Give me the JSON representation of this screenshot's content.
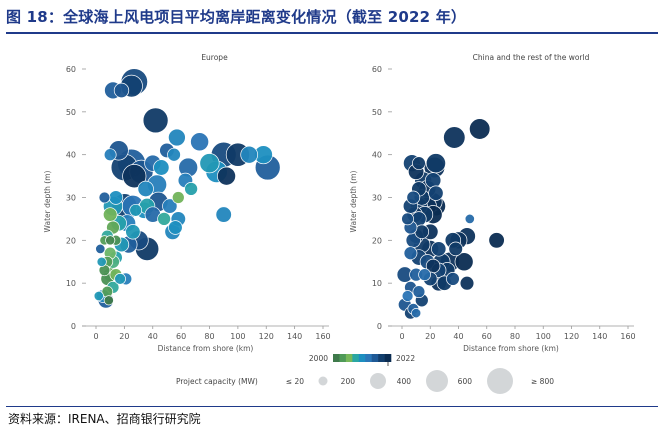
{
  "figure": {
    "title": "图 18：全球海上风电项目平均离岸距离变化情况（截至 2022 年）",
    "source": "资料来源：IRENA、招商银行研究院"
  },
  "legend": {
    "year_start": "2000",
    "year_end": "2022",
    "capacity_label": "Project capacity (MW)",
    "size_labels": [
      "≤ 20",
      "200",
      "400",
      "600",
      "≥ 800"
    ],
    "size_values": [
      20,
      200,
      400,
      600,
      800
    ]
  },
  "colors": {
    "year_scale": [
      "#3f7a4b",
      "#4f9a58",
      "#78b85a",
      "#2aa7a3",
      "#1d8fc0",
      "#2b77b8",
      "#1f5a96",
      "#123f6e",
      "#0b2c52"
    ],
    "axis": "#999999",
    "bubble_stroke": "#ffffff"
  },
  "chart_data": [
    {
      "type": "scatter",
      "title": "Europe",
      "xlabel": "Distance from shore (km)",
      "ylabel": "Water depth (m)",
      "xlim": [
        0,
        160
      ],
      "ylim": [
        0,
        60
      ],
      "xticks": [
        "0",
        "20",
        "40",
        "60",
        "80",
        "100",
        "120",
        "140",
        "160"
      ],
      "yticks": [
        "0",
        "10",
        "20",
        "30",
        "40",
        "50",
        "60"
      ],
      "points": [
        {
          "x": 27,
          "y": 57,
          "cap": 700,
          "year": 2018
        },
        {
          "x": 25,
          "y": 56,
          "cap": 420,
          "year": 2019
        },
        {
          "x": 12,
          "y": 55,
          "cap": 200,
          "year": 2016
        },
        {
          "x": 18,
          "y": 55,
          "cap": 120,
          "year": 2017
        },
        {
          "x": 42,
          "y": 48,
          "cap": 600,
          "year": 2020
        },
        {
          "x": 57,
          "y": 44,
          "cap": 200,
          "year": 2012
        },
        {
          "x": 73,
          "y": 43,
          "cap": 250,
          "year": 2014
        },
        {
          "x": 16,
          "y": 41,
          "cap": 300,
          "year": 2017
        },
        {
          "x": 10,
          "y": 40,
          "cap": 60,
          "year": 2013
        },
        {
          "x": 50,
          "y": 41,
          "cap": 120,
          "year": 2016
        },
        {
          "x": 55,
          "y": 40,
          "cap": 80,
          "year": 2012
        },
        {
          "x": 90,
          "y": 40,
          "cap": 600,
          "year": 2018
        },
        {
          "x": 100,
          "y": 40,
          "cap": 500,
          "year": 2020
        },
        {
          "x": 108,
          "y": 40,
          "cap": 200,
          "year": 2012
        },
        {
          "x": 118,
          "y": 40,
          "cap": 250,
          "year": 2011
        },
        {
          "x": 25,
          "y": 38,
          "cap": 800,
          "year": 2016
        },
        {
          "x": 20,
          "y": 37,
          "cap": 700,
          "year": 2019
        },
        {
          "x": 32,
          "y": 36,
          "cap": 500,
          "year": 2017
        },
        {
          "x": 40,
          "y": 38,
          "cap": 180,
          "year": 2015
        },
        {
          "x": 46,
          "y": 37,
          "cap": 150,
          "year": 2011
        },
        {
          "x": 27,
          "y": 35,
          "cap": 500,
          "year": 2021
        },
        {
          "x": 65,
          "y": 37,
          "cap": 280,
          "year": 2015
        },
        {
          "x": 80,
          "y": 38,
          "cap": 300,
          "year": 2010
        },
        {
          "x": 121,
          "y": 37,
          "cap": 600,
          "year": 2016
        },
        {
          "x": 85,
          "y": 36,
          "cap": 400,
          "year": 2011
        },
        {
          "x": 92,
          "y": 35,
          "cap": 250,
          "year": 2021
        },
        {
          "x": 63,
          "y": 34,
          "cap": 120,
          "year": 2013
        },
        {
          "x": 43,
          "y": 33,
          "cap": 300,
          "year": 2013
        },
        {
          "x": 35,
          "y": 32,
          "cap": 150,
          "year": 2012
        },
        {
          "x": 67,
          "y": 32,
          "cap": 80,
          "year": 2009
        },
        {
          "x": 6,
          "y": 30,
          "cap": 40,
          "year": 2016
        },
        {
          "x": 14,
          "y": 30,
          "cap": 100,
          "year": 2011
        },
        {
          "x": 44,
          "y": 29,
          "cap": 300,
          "year": 2017
        },
        {
          "x": 52,
          "y": 28,
          "cap": 120,
          "year": 2013
        },
        {
          "x": 58,
          "y": 30,
          "cap": 60,
          "year": 2005
        },
        {
          "x": 12,
          "y": 28,
          "cap": 300,
          "year": 2010
        },
        {
          "x": 20,
          "y": 28,
          "cap": 600,
          "year": 2019
        },
        {
          "x": 26,
          "y": 28,
          "cap": 400,
          "year": 2014
        },
        {
          "x": 28,
          "y": 27,
          "cap": 60,
          "year": 2010
        },
        {
          "x": 34,
          "y": 27,
          "cap": 180,
          "year": 2011
        },
        {
          "x": 36,
          "y": 28,
          "cap": 150,
          "year": 2009
        },
        {
          "x": 10,
          "y": 26,
          "cap": 100,
          "year": 2005
        },
        {
          "x": 40,
          "y": 26,
          "cap": 150,
          "year": 2015
        },
        {
          "x": 48,
          "y": 25,
          "cap": 80,
          "year": 2008
        },
        {
          "x": 58,
          "y": 25,
          "cap": 120,
          "year": 2012
        },
        {
          "x": 90,
          "y": 26,
          "cap": 150,
          "year": 2012
        },
        {
          "x": 16,
          "y": 24,
          "cap": 150,
          "year": 2009
        },
        {
          "x": 22,
          "y": 24,
          "cap": 200,
          "year": 2013
        },
        {
          "x": 56,
          "y": 23,
          "cap": 100,
          "year": 2011
        },
        {
          "x": 12,
          "y": 23,
          "cap": 80,
          "year": 2004
        },
        {
          "x": 26,
          "y": 22,
          "cap": 120,
          "year": 2010
        },
        {
          "x": 54,
          "y": 22,
          "cap": 150,
          "year": 2012
        },
        {
          "x": 8,
          "y": 21,
          "cap": 60,
          "year": 2008
        },
        {
          "x": 30,
          "y": 20,
          "cap": 300,
          "year": 2018
        },
        {
          "x": 6,
          "y": 20,
          "cap": 20,
          "year": 2003
        },
        {
          "x": 10,
          "y": 20,
          "cap": 20,
          "year": 2001
        },
        {
          "x": 14,
          "y": 20,
          "cap": 30,
          "year": 2002
        },
        {
          "x": 18,
          "y": 19,
          "cap": 120,
          "year": 2010
        },
        {
          "x": 23,
          "y": 19,
          "cap": 200,
          "year": 2016
        },
        {
          "x": 36,
          "y": 18,
          "cap": 500,
          "year": 2020
        },
        {
          "x": 3,
          "y": 18,
          "cap": 20,
          "year": 2016
        },
        {
          "x": 10,
          "y": 17,
          "cap": 60,
          "year": 2006
        },
        {
          "x": 14,
          "y": 16,
          "cap": 80,
          "year": 2009
        },
        {
          "x": 4,
          "y": 15,
          "cap": 20,
          "year": 2010
        },
        {
          "x": 8,
          "y": 15,
          "cap": 40,
          "year": 2003
        },
        {
          "x": 12,
          "y": 15,
          "cap": 80,
          "year": 2007
        },
        {
          "x": 6,
          "y": 13,
          "cap": 40,
          "year": 2002
        },
        {
          "x": 10,
          "y": 12,
          "cap": 100,
          "year": 2004
        },
        {
          "x": 14,
          "y": 12,
          "cap": 60,
          "year": 2005
        },
        {
          "x": 8,
          "y": 11,
          "cap": 80,
          "year": 2002
        },
        {
          "x": 17,
          "y": 11,
          "cap": 40,
          "year": 2010
        },
        {
          "x": 21,
          "y": 11,
          "cap": 60,
          "year": 2013
        },
        {
          "x": 12,
          "y": 9,
          "cap": 60,
          "year": 2008
        },
        {
          "x": 8,
          "y": 8,
          "cap": 40,
          "year": 2003
        },
        {
          "x": 5,
          "y": 7,
          "cap": 80,
          "year": 2012
        },
        {
          "x": 7,
          "y": 6,
          "cap": 150,
          "year": 2016
        },
        {
          "x": 9,
          "y": 6,
          "cap": 20,
          "year": 2000
        },
        {
          "x": 2,
          "y": 7,
          "cap": 20,
          "year": 2010
        }
      ]
    },
    {
      "type": "scatter",
      "title": "China and the rest of the world",
      "xlabel": "Distance from shore (km)",
      "ylabel": "Water depth (m)",
      "xlim": [
        0,
        160
      ],
      "ylim": [
        0,
        60
      ],
      "xticks": [
        "0",
        "20",
        "40",
        "60",
        "80",
        "100",
        "120",
        "140",
        "160"
      ],
      "yticks": [
        "0",
        "10",
        "20",
        "30",
        "40",
        "50",
        "60"
      ],
      "points": [
        {
          "x": 55,
          "y": 46,
          "cap": 350,
          "year": 2022
        },
        {
          "x": 37,
          "y": 44,
          "cap": 400,
          "year": 2021
        },
        {
          "x": 24,
          "y": 38,
          "cap": 300,
          "year": 2020
        },
        {
          "x": 7,
          "y": 38,
          "cap": 200,
          "year": 2019
        },
        {
          "x": 12,
          "y": 38,
          "cap": 80,
          "year": 2020
        },
        {
          "x": 23,
          "y": 37,
          "cap": 350,
          "year": 2021
        },
        {
          "x": 10,
          "y": 36,
          "cap": 150,
          "year": 2021
        },
        {
          "x": 15,
          "y": 34,
          "cap": 200,
          "year": 2020
        },
        {
          "x": 22,
          "y": 34,
          "cap": 150,
          "year": 2019
        },
        {
          "x": 12,
          "y": 32,
          "cap": 120,
          "year": 2020
        },
        {
          "x": 18,
          "y": 32,
          "cap": 200,
          "year": 2021
        },
        {
          "x": 24,
          "y": 31,
          "cap": 120,
          "year": 2019
        },
        {
          "x": 8,
          "y": 30,
          "cap": 80,
          "year": 2018
        },
        {
          "x": 14,
          "y": 30,
          "cap": 150,
          "year": 2020
        },
        {
          "x": 22,
          "y": 29,
          "cap": 250,
          "year": 2021
        },
        {
          "x": 6,
          "y": 28,
          "cap": 120,
          "year": 2019
        },
        {
          "x": 12,
          "y": 28,
          "cap": 200,
          "year": 2020
        },
        {
          "x": 18,
          "y": 28,
          "cap": 250,
          "year": 2021
        },
        {
          "x": 24,
          "y": 28,
          "cap": 300,
          "year": 2022
        },
        {
          "x": 9,
          "y": 26,
          "cap": 150,
          "year": 2021
        },
        {
          "x": 16,
          "y": 26,
          "cap": 180,
          "year": 2020
        },
        {
          "x": 22,
          "y": 26,
          "cap": 250,
          "year": 2022
        },
        {
          "x": 4,
          "y": 25,
          "cap": 60,
          "year": 2018
        },
        {
          "x": 12,
          "y": 25,
          "cap": 120,
          "year": 2019
        },
        {
          "x": 48,
          "y": 25,
          "cap": 20,
          "year": 2015
        },
        {
          "x": 6,
          "y": 23,
          "cap": 80,
          "year": 2017
        },
        {
          "x": 14,
          "y": 22,
          "cap": 100,
          "year": 2020
        },
        {
          "x": 20,
          "y": 22,
          "cap": 150,
          "year": 2021
        },
        {
          "x": 10,
          "y": 21,
          "cap": 120,
          "year": 2019
        },
        {
          "x": 46,
          "y": 21,
          "cap": 200,
          "year": 2021
        },
        {
          "x": 36,
          "y": 20,
          "cap": 150,
          "year": 2020
        },
        {
          "x": 40,
          "y": 20,
          "cap": 200,
          "year": 2021
        },
        {
          "x": 67,
          "y": 20,
          "cap": 150,
          "year": 2022
        },
        {
          "x": 8,
          "y": 20,
          "cap": 120,
          "year": 2018
        },
        {
          "x": 14,
          "y": 19,
          "cap": 180,
          "year": 2020
        },
        {
          "x": 20,
          "y": 18,
          "cap": 200,
          "year": 2021
        },
        {
          "x": 26,
          "y": 18,
          "cap": 120,
          "year": 2019
        },
        {
          "x": 38,
          "y": 18,
          "cap": 100,
          "year": 2020
        },
        {
          "x": 6,
          "y": 17,
          "cap": 80,
          "year": 2016
        },
        {
          "x": 12,
          "y": 16,
          "cap": 150,
          "year": 2019
        },
        {
          "x": 28,
          "y": 15,
          "cap": 200,
          "year": 2020
        },
        {
          "x": 34,
          "y": 15,
          "cap": 300,
          "year": 2021
        },
        {
          "x": 44,
          "y": 15,
          "cap": 250,
          "year": 2022
        },
        {
          "x": 18,
          "y": 15,
          "cap": 120,
          "year": 2018
        },
        {
          "x": 22,
          "y": 14,
          "cap": 100,
          "year": 2021
        },
        {
          "x": 26,
          "y": 13,
          "cap": 120,
          "year": 2019
        },
        {
          "x": 32,
          "y": 13,
          "cap": 150,
          "year": 2020
        },
        {
          "x": 2,
          "y": 12,
          "cap": 150,
          "year": 2018
        },
        {
          "x": 10,
          "y": 12,
          "cap": 80,
          "year": 2016
        },
        {
          "x": 16,
          "y": 12,
          "cap": 60,
          "year": 2015
        },
        {
          "x": 20,
          "y": 11,
          "cap": 100,
          "year": 2019
        },
        {
          "x": 26,
          "y": 10,
          "cap": 150,
          "year": 2021
        },
        {
          "x": 30,
          "y": 10,
          "cap": 120,
          "year": 2020
        },
        {
          "x": 46,
          "y": 10,
          "cap": 100,
          "year": 2021
        },
        {
          "x": 36,
          "y": 11,
          "cap": 80,
          "year": 2018
        },
        {
          "x": 6,
          "y": 9,
          "cap": 60,
          "year": 2017
        },
        {
          "x": 12,
          "y": 8,
          "cap": 60,
          "year": 2016
        },
        {
          "x": 4,
          "y": 7,
          "cap": 40,
          "year": 2014
        },
        {
          "x": 14,
          "y": 6,
          "cap": 80,
          "year": 2019
        },
        {
          "x": 2,
          "y": 5,
          "cap": 80,
          "year": 2017
        },
        {
          "x": 8,
          "y": 4,
          "cap": 40,
          "year": 2016
        },
        {
          "x": 6,
          "y": 3,
          "cap": 60,
          "year": 2019
        },
        {
          "x": 10,
          "y": 3,
          "cap": 20,
          "year": 2015
        }
      ]
    }
  ]
}
